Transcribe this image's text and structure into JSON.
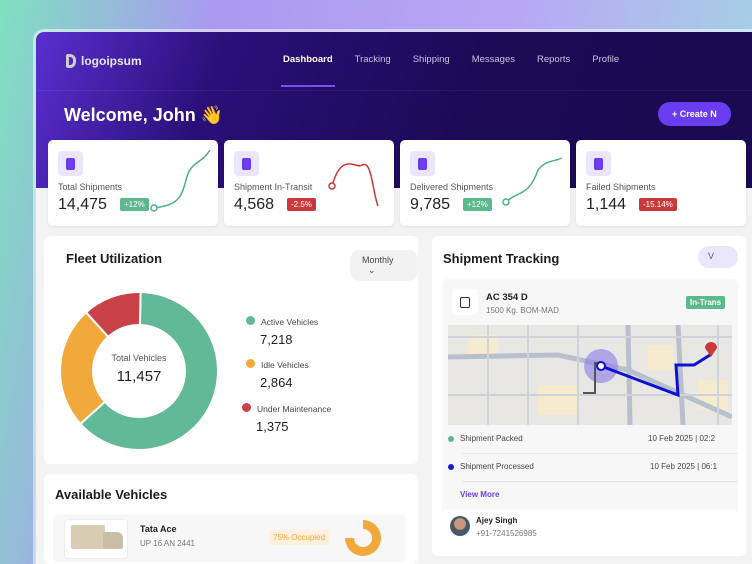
{
  "brand": "logoipsum",
  "nav": [
    "Dashboard",
    "Tracking",
    "Shipping",
    "Messages",
    "Reports",
    "Profile"
  ],
  "welcome": "Welcome, John 👋",
  "create_label": "+ Create N",
  "stats": [
    {
      "label": "Total Shipments",
      "value": "14,475",
      "change": "+12%",
      "trend": "up",
      "color": "#4caf87"
    },
    {
      "label": "Shipment In-Transit",
      "value": "4,568",
      "change": "-2.5%",
      "trend": "down",
      "color": "#c9393b"
    },
    {
      "label": "Delivered Shipments",
      "value": "9,785",
      "change": "+12%",
      "trend": "up",
      "color": "#4caf87"
    },
    {
      "label": "Failed Shipments",
      "value": "1,144",
      "change": "-15.14%",
      "trend": "down",
      "color": "#c9393b"
    }
  ],
  "fleet": {
    "title": "Fleet Utilization",
    "period": "Monthly",
    "center_label": "Total Vehicles",
    "total": "11,457",
    "chart_data": {
      "type": "pie",
      "values": [
        7218,
        2864,
        1375
      ],
      "categories": [
        "Active Vehicles",
        "Idle Vehicles",
        "Under Maintenance"
      ],
      "colors": [
        "#62b997",
        "#f2a93b",
        "#c94247"
      ]
    },
    "legend": [
      {
        "label": "Active Vehicles",
        "value": "7,218"
      },
      {
        "label": "Idle Vehicles",
        "value": "2,864"
      },
      {
        "label": "Under Maintenance",
        "value": "1,375"
      }
    ]
  },
  "vehicles": {
    "title": "Available Vehicles",
    "items": [
      {
        "name": "Tata Ace",
        "plate": "UP 16 AN 2441",
        "occupancy": "75% Occupied",
        "occupied": 0.75
      }
    ]
  },
  "tracking": {
    "title": "Shipment Tracking",
    "view_label": "V",
    "id": "AC 354 D",
    "detail": "1500 Kg. BOM-MAD",
    "status": "In-Trans",
    "events": [
      {
        "label": "Shipment Packed",
        "time": "10 Feb 2025 | 02:2"
      },
      {
        "label": "Shipment Processed",
        "time": "10 Feb 2025 | 06:1"
      }
    ],
    "view_more": "View More",
    "driver": {
      "name": "Ajey Singh",
      "phone": "+91-7241526985"
    }
  }
}
